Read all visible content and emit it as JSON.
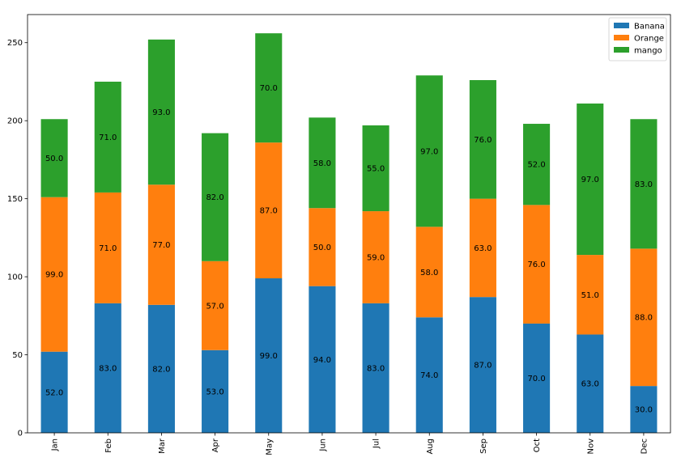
{
  "chart_data": {
    "type": "bar",
    "stacked": true,
    "categories": [
      "Jan",
      "Feb",
      "Mar",
      "Apr",
      "May",
      "Jun",
      "Jul",
      "Aug",
      "Sep",
      "Oct",
      "Nov",
      "Dec"
    ],
    "series": [
      {
        "name": "Banana",
        "color": "#1f77b4",
        "values": [
          52,
          83,
          82,
          53,
          99,
          94,
          83,
          74,
          87,
          70,
          63,
          30
        ],
        "labels": [
          "52.0",
          "83.0",
          "82.0",
          "53.0",
          "99.0",
          "94.0",
          "83.0",
          "74.0",
          "87.0",
          "70.0",
          "63.0",
          "30.0"
        ]
      },
      {
        "name": "Orange",
        "color": "#ff7f0e",
        "values": [
          99,
          71,
          77,
          57,
          87,
          50,
          59,
          58,
          63,
          76,
          51,
          88
        ],
        "labels": [
          "99.0",
          "71.0",
          "77.0",
          "57.0",
          "87.0",
          "50.0",
          "59.0",
          "58.0",
          "63.0",
          "76.0",
          "51.0",
          "88.0"
        ]
      },
      {
        "name": "mango",
        "color": "#2ca02c",
        "values": [
          50,
          71,
          93,
          82,
          70,
          58,
          55,
          97,
          76,
          52,
          97,
          83
        ],
        "labels": [
          "50.0",
          "71.0",
          "93.0",
          "82.0",
          "70.0",
          "58.0",
          "55.0",
          "97.0",
          "76.0",
          "52.0",
          "97.0",
          "83.0"
        ]
      }
    ],
    "ylim": [
      0,
      268
    ],
    "yticks": [
      0,
      50,
      100,
      150,
      200,
      250
    ],
    "ytick_labels": [
      "0",
      "50",
      "100",
      "150",
      "200",
      "250"
    ],
    "grid": false,
    "legend_position": "top-right",
    "title": "",
    "xlabel": "",
    "ylabel": ""
  }
}
